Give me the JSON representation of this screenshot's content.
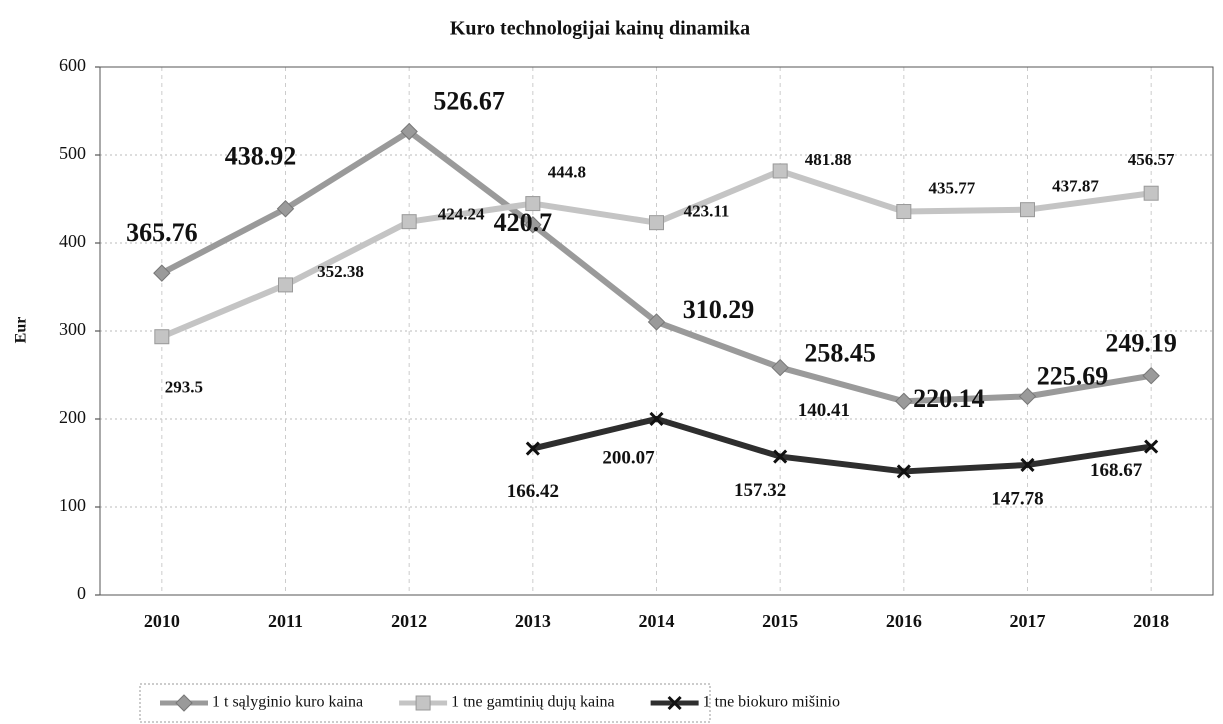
{
  "chart_data": {
    "type": "line",
    "title": "Kuro technologijai kainų dinamika",
    "y_label": "Eur",
    "categories": [
      "2010",
      "2011",
      "2012",
      "2013",
      "2014",
      "2015",
      "2016",
      "2017",
      "2018"
    ],
    "series": [
      {
        "name": "1 t sąlyginio kuro kaina",
        "color": "#9a9a9a",
        "marker": "diamond",
        "values": [
          365.76,
          438.92,
          526.67,
          420.7,
          310.29,
          258.45,
          220.14,
          225.69,
          249.19
        ]
      },
      {
        "name": "1 tne gamtinių dujų kaina",
        "color": "#c4c4c4",
        "marker": "square",
        "values": [
          293.5,
          352.38,
          424.24,
          444.8,
          423.11,
          481.88,
          435.77,
          437.87,
          456.57
        ]
      },
      {
        "name": "1 tne biokuro mišinio",
        "color": "#2e2e2e",
        "marker": "x",
        "values": [
          null,
          null,
          null,
          166.42,
          200.07,
          157.32,
          140.41,
          147.78,
          168.67
        ]
      }
    ],
    "ylim": [
      0,
      600
    ],
    "yticks": [
      0,
      100,
      200,
      300,
      400,
      500,
      600
    ],
    "grid": true,
    "legend": "bottom"
  }
}
